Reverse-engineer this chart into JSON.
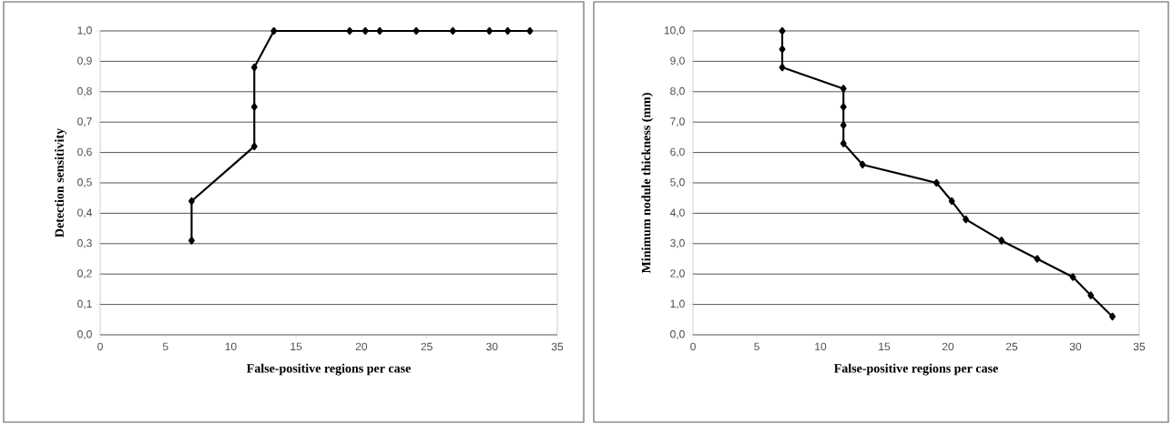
{
  "chart_data": [
    {
      "type": "line",
      "xlabel": "False-positive regions per case",
      "ylabel": "Detection  sensitivity",
      "color": "#000000",
      "marker": "diamond",
      "grid": "y",
      "x": [
        7.0,
        7.0,
        11.8,
        11.8,
        11.8,
        13.3,
        19.1,
        20.3,
        21.4,
        24.2,
        27.0,
        29.8,
        31.2,
        32.9
      ],
      "values": [
        0.31,
        0.44,
        0.62,
        0.75,
        0.88,
        1.0,
        1.0,
        1.0,
        1.0,
        1.0,
        1.0,
        1.0,
        1.0,
        1.0
      ],
      "xlim": [
        0,
        35
      ],
      "xticks": [
        0,
        5,
        10,
        15,
        20,
        25,
        30,
        35
      ],
      "ylim": [
        0,
        1
      ],
      "yticks": [
        {
          "value": 0,
          "label": "0,0"
        },
        {
          "value": 0.1,
          "label": "0,1"
        },
        {
          "value": 0.2,
          "label": "0,2"
        },
        {
          "value": 0.3,
          "label": "0,3"
        },
        {
          "value": 0.4,
          "label": "0,4"
        },
        {
          "value": 0.5,
          "label": "0,5"
        },
        {
          "value": 0.6,
          "label": "0,6"
        },
        {
          "value": 0.7,
          "label": "0,7"
        },
        {
          "value": 0.8,
          "label": "0,8"
        },
        {
          "value": 0.9,
          "label": "0,9"
        },
        {
          "value": 1,
          "label": "1,0"
        }
      ]
    },
    {
      "type": "line",
      "xlabel": "False-positive regions per case",
      "ylabel": "Minimum nodule thickness (mm)",
      "color": "#000000",
      "marker": "diamond",
      "grid": "y",
      "x": [
        7.0,
        7.0,
        7.0,
        11.8,
        11.8,
        11.8,
        11.8,
        13.3,
        19.1,
        20.3,
        21.4,
        24.2,
        27.0,
        29.8,
        31.2,
        32.9
      ],
      "values": [
        10.0,
        9.4,
        8.8,
        8.1,
        7.5,
        6.9,
        6.3,
        5.6,
        5.0,
        4.4,
        3.8,
        3.1,
        2.5,
        1.9,
        1.3,
        0.6
      ],
      "xlim": [
        0,
        35
      ],
      "xticks": [
        0,
        5,
        10,
        15,
        20,
        25,
        30,
        35
      ],
      "ylim": [
        0,
        10
      ],
      "yticks": [
        {
          "value": 0,
          "label": "0,0"
        },
        {
          "value": 1,
          "label": "1,0"
        },
        {
          "value": 2,
          "label": "2,0"
        },
        {
          "value": 3,
          "label": "3,0"
        },
        {
          "value": 4,
          "label": "4,0"
        },
        {
          "value": 5,
          "label": "5,0"
        },
        {
          "value": 6,
          "label": "6,0"
        },
        {
          "value": 7,
          "label": "7,0"
        },
        {
          "value": 8,
          "label": "8,0"
        },
        {
          "value": 9,
          "label": "9,0"
        },
        {
          "value": 10,
          "label": "10,0"
        }
      ]
    }
  ]
}
